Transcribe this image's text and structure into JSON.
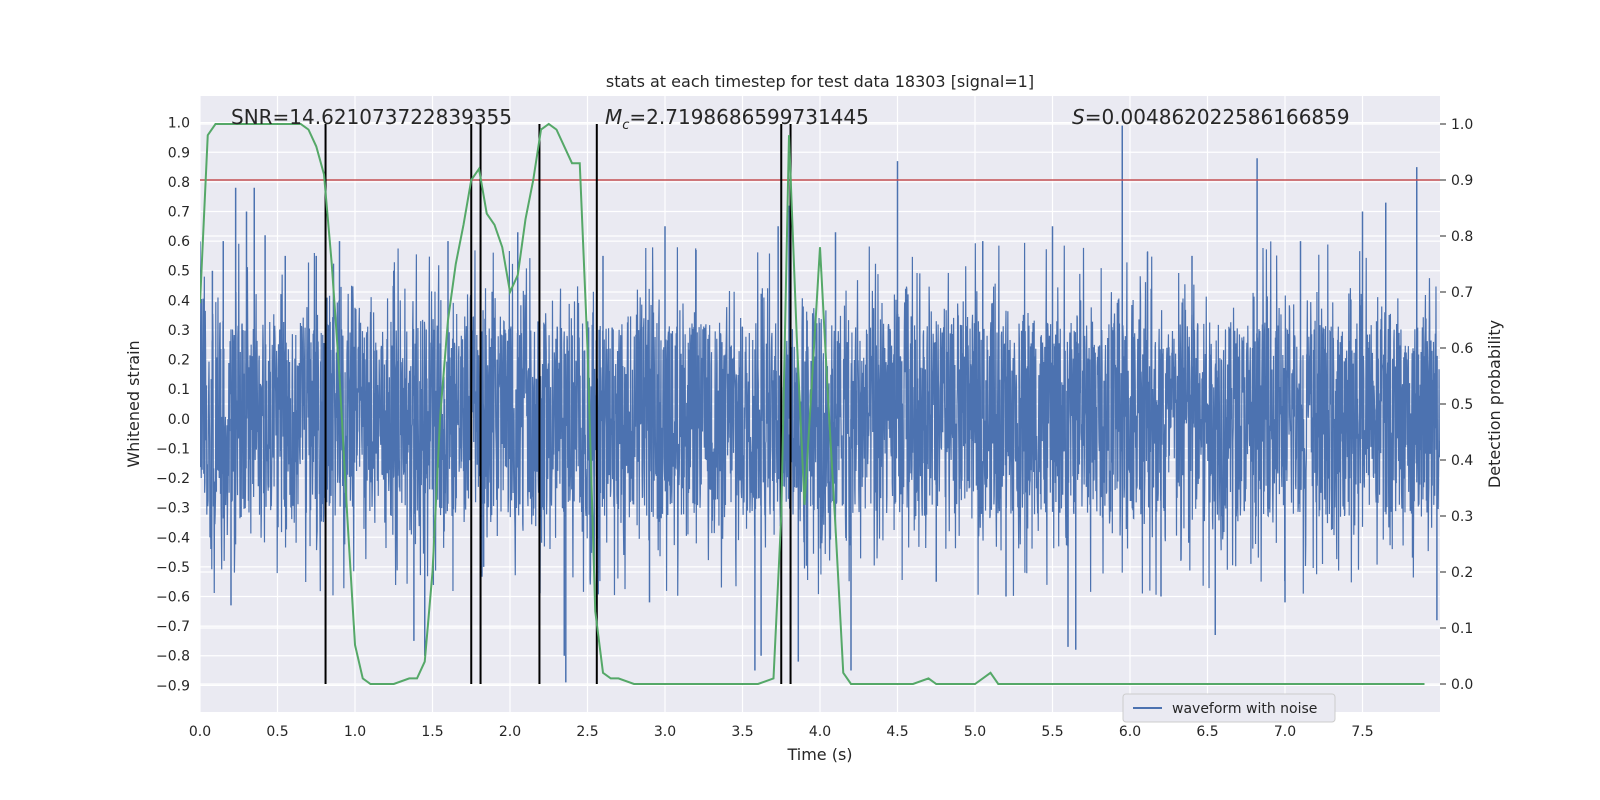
{
  "chart_data": {
    "type": "line",
    "title": "stats at each timestep for test data 18303 [signal=1]",
    "xlabel": "Time (s)",
    "ylabel_left": "Whitened strain",
    "ylabel_right": "Detection probability",
    "xlim": [
      0.0,
      8.0
    ],
    "ylim_left": [
      -0.99,
      1.09
    ],
    "ylim_right": [
      -0.05,
      1.05
    ],
    "xticks": [
      "0.0",
      "0.5",
      "1.0",
      "1.5",
      "2.0",
      "2.5",
      "3.0",
      "3.5",
      "4.0",
      "4.5",
      "5.0",
      "5.5",
      "6.0",
      "6.5",
      "7.0",
      "7.5"
    ],
    "yticks_left": [
      "1.0",
      "0.9",
      "0.8",
      "0.7",
      "0.6",
      "0.5",
      "0.4",
      "0.3",
      "0.2",
      "0.1",
      "0.0",
      "−0.1",
      "−0.2",
      "−0.3",
      "−0.4",
      "−0.5",
      "−0.6",
      "−0.7",
      "−0.8",
      "−0.9"
    ],
    "yticks_right": [
      "1.0",
      "0.9",
      "0.8",
      "0.7",
      "0.6",
      "0.5",
      "0.4",
      "0.3",
      "0.2",
      "0.1",
      "0.0"
    ],
    "annotations": {
      "snr": "SNR=14.621073722839355",
      "mc": "=2.7198686599731445",
      "mc_symbol": "M",
      "mc_sub": "c",
      "s": "=0.004862022586166859",
      "s_symbol": "S"
    },
    "threshold_probability": 0.9,
    "crossing_times": [
      0.81,
      1.75,
      1.81,
      2.19,
      2.56,
      3.75,
      3.81
    ],
    "waveform": {
      "name": "waveform with noise",
      "color": "#4c72b0",
      "duration_s": 8.0,
      "core_abs_amplitude": 0.33,
      "noise_peaks": [
        [
          0.08,
          0.5
        ],
        [
          0.15,
          0.6
        ],
        [
          0.2,
          -0.63
        ],
        [
          0.23,
          0.78
        ],
        [
          0.3,
          0.7
        ],
        [
          0.35,
          0.78
        ],
        [
          0.42,
          0.62
        ],
        [
          0.55,
          0.55
        ],
        [
          0.75,
          0.55
        ],
        [
          0.9,
          0.6
        ],
        [
          1.25,
          0.5
        ],
        [
          1.38,
          -0.75
        ],
        [
          1.45,
          -0.8
        ],
        [
          1.6,
          0.6
        ],
        [
          1.83,
          -0.5
        ],
        [
          2.05,
          0.63
        ],
        [
          2.35,
          -0.8
        ],
        [
          2.36,
          -0.89
        ],
        [
          2.6,
          0.55
        ],
        [
          2.9,
          -0.62
        ],
        [
          3.0,
          0.65
        ],
        [
          3.2,
          0.57
        ],
        [
          3.58,
          -0.85
        ],
        [
          3.62,
          -0.8
        ],
        [
          3.73,
          0.65
        ],
        [
          3.8,
          0.72
        ],
        [
          3.86,
          -0.82
        ],
        [
          4.1,
          0.63
        ],
        [
          4.2,
          -0.85
        ],
        [
          4.5,
          0.87
        ],
        [
          4.75,
          -0.55
        ],
        [
          5.05,
          0.6
        ],
        [
          5.2,
          -0.6
        ],
        [
          5.5,
          0.65
        ],
        [
          5.6,
          -0.77
        ],
        [
          5.65,
          -0.78
        ],
        [
          5.95,
          0.99
        ],
        [
          6.2,
          -0.6
        ],
        [
          6.4,
          0.55
        ],
        [
          6.55,
          -0.73
        ],
        [
          6.82,
          0.88
        ],
        [
          7.0,
          -0.62
        ],
        [
          7.1,
          0.6
        ],
        [
          7.5,
          0.7
        ],
        [
          7.65,
          0.73
        ],
        [
          7.85,
          0.85
        ],
        [
          7.98,
          -0.68
        ]
      ]
    },
    "probability": {
      "color": "#55a868",
      "t": [
        0.0,
        0.05,
        0.1,
        0.2,
        0.3,
        0.4,
        0.5,
        0.6,
        0.65,
        0.7,
        0.75,
        0.8,
        0.85,
        0.9,
        0.95,
        1.0,
        1.05,
        1.1,
        1.15,
        1.25,
        1.35,
        1.4,
        1.45,
        1.5,
        1.55,
        1.6,
        1.65,
        1.7,
        1.75,
        1.8,
        1.85,
        1.9,
        1.95,
        2.0,
        2.05,
        2.1,
        2.15,
        2.2,
        2.25,
        2.3,
        2.35,
        2.4,
        2.45,
        2.5,
        2.55,
        2.6,
        2.65,
        2.7,
        2.8,
        2.9,
        3.0,
        3.2,
        3.4,
        3.6,
        3.7,
        3.75,
        3.8,
        3.85,
        3.9,
        3.95,
        4.0,
        4.05,
        4.1,
        4.15,
        4.2,
        4.3,
        4.5,
        4.6,
        4.7,
        4.75,
        4.8,
        4.9,
        5.0,
        5.05,
        5.1,
        5.15,
        5.2,
        5.3,
        5.5,
        5.7,
        5.9,
        6.1,
        6.3,
        6.5,
        6.7,
        6.9,
        7.1,
        7.3,
        7.5,
        7.7,
        7.9
      ],
      "p": [
        0.68,
        0.98,
        1.0,
        1.0,
        1.0,
        1.0,
        1.0,
        1.0,
        1.0,
        0.99,
        0.96,
        0.91,
        0.75,
        0.55,
        0.3,
        0.07,
        0.01,
        0.0,
        0.0,
        0.0,
        0.01,
        0.01,
        0.04,
        0.2,
        0.48,
        0.65,
        0.75,
        0.82,
        0.9,
        0.92,
        0.84,
        0.82,
        0.78,
        0.7,
        0.73,
        0.83,
        0.9,
        0.99,
        1.0,
        0.99,
        0.96,
        0.93,
        0.93,
        0.6,
        0.13,
        0.02,
        0.01,
        0.01,
        0.0,
        0.0,
        0.0,
        0.0,
        0.0,
        0.0,
        0.01,
        0.3,
        0.98,
        0.62,
        0.32,
        0.55,
        0.78,
        0.52,
        0.28,
        0.02,
        0.0,
        0.0,
        0.0,
        0.0,
        0.01,
        0.0,
        0.0,
        0.0,
        0.0,
        0.01,
        0.02,
        0.0,
        0.0,
        0.0,
        0.0,
        0.0,
        0.0,
        0.0,
        0.0,
        0.0,
        0.0,
        0.0,
        0.0,
        0.0,
        0.0,
        0.0,
        0.0
      ]
    },
    "colors": {
      "face": "#eaeaf2",
      "grid": "#ffffff",
      "threshold": "#c44e52",
      "vlines": "#000000"
    },
    "legend": {
      "placement": "bottom-right",
      "label": "waveform with noise"
    }
  }
}
